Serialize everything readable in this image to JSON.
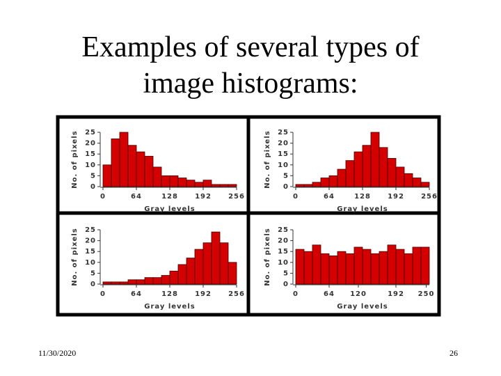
{
  "slide": {
    "title": "Examples of several types of image histograms:",
    "date": "11/30/2020",
    "page": "26"
  },
  "chart_data": [
    {
      "type": "histogram",
      "xlabel": "Gray levels",
      "ylabel": "No. of pixels",
      "color": "#d40000",
      "bins": [
        0,
        16,
        32,
        48,
        64,
        80,
        96,
        112,
        128,
        144,
        160,
        176,
        192,
        208,
        224,
        240,
        256
      ],
      "values": [
        10,
        22,
        25,
        19,
        16,
        14,
        9,
        5,
        5,
        4,
        3,
        2,
        3,
        1,
        1,
        1
      ],
      "xlim": [
        0,
        256
      ],
      "xticks": [
        0,
        64,
        128,
        192,
        256
      ],
      "ylim": [
        0,
        25
      ],
      "yticks": [
        0,
        5,
        10,
        15,
        20,
        25
      ]
    },
    {
      "type": "histogram",
      "xlabel": "Gray levels",
      "ylabel": "No. of pixels",
      "color": "#d40000",
      "bins": [
        0,
        16,
        32,
        48,
        64,
        80,
        96,
        112,
        128,
        144,
        160,
        176,
        192,
        208,
        224,
        240,
        256
      ],
      "values": [
        1,
        1,
        2,
        4,
        5,
        8,
        12,
        16,
        19,
        25,
        18,
        13,
        9,
        6,
        4,
        2
      ],
      "xlim": [
        0,
        256
      ],
      "xticks": [
        0,
        64,
        128,
        192,
        256
      ],
      "ylim": [
        0,
        25
      ],
      "yticks": [
        0,
        5,
        10,
        15,
        20,
        25
      ]
    },
    {
      "type": "histogram",
      "xlabel": "Gray levels",
      "ylabel": "No. of pixels",
      "color": "#d40000",
      "bins": [
        0,
        16,
        32,
        48,
        64,
        80,
        96,
        112,
        128,
        144,
        160,
        176,
        192,
        208,
        224,
        240,
        256
      ],
      "values": [
        1,
        1,
        1,
        2,
        2,
        3,
        3,
        4,
        6,
        9,
        12,
        16,
        19,
        24,
        19,
        10
      ],
      "xlim": [
        0,
        256
      ],
      "xticks": [
        0,
        64,
        128,
        192,
        256
      ],
      "ylim": [
        0,
        25
      ],
      "yticks": [
        0,
        5,
        10,
        15,
        20,
        25
      ]
    },
    {
      "type": "histogram",
      "xlabel": "Gray levels",
      "ylabel": "No. of pixels",
      "color": "#d40000",
      "bins": [
        0,
        16,
        32,
        48,
        64,
        80,
        96,
        112,
        128,
        144,
        160,
        176,
        192,
        208,
        224,
        240,
        256
      ],
      "values": [
        16,
        15,
        18,
        14,
        13,
        15,
        14,
        17,
        16,
        14,
        15,
        18,
        16,
        14,
        17,
        17
      ],
      "xlim": [
        0,
        256
      ],
      "xticks": [
        0,
        64,
        120,
        192,
        250
      ],
      "ylim": [
        0,
        25
      ],
      "yticks": [
        0,
        5,
        10,
        15,
        20,
        25
      ]
    }
  ]
}
